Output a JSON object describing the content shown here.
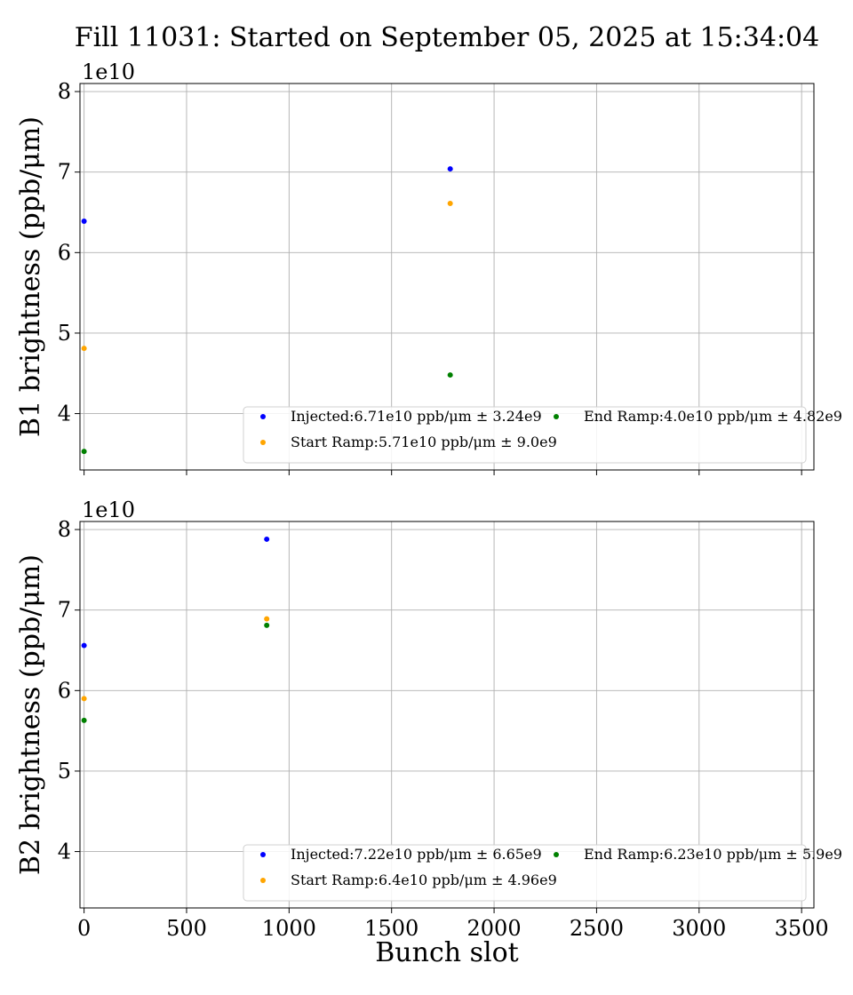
{
  "figure": {
    "title": "Fill 11031: Started on September 05, 2025 at 15:34:04",
    "xlabel": "Bunch slot"
  },
  "colors": {
    "Injected": "#0000ff",
    "Start Ramp": "#ffa500",
    "End Ramp": "#008000",
    "grid": "#b0b0b0"
  },
  "chart_data": [
    {
      "type": "scatter",
      "title": "",
      "xlabel": "",
      "ylabel": "B1 brightness (ppb/μm)",
      "y_offset_label": "1e10",
      "xlim": [
        -20,
        3560
      ],
      "ylim": [
        33000000000.0,
        81000000000.0
      ],
      "grid": true,
      "legend": "lower right",
      "xticks": [
        0,
        500,
        1000,
        1500,
        2000,
        2500,
        3000,
        3500
      ],
      "yticks": [
        40000000000.0,
        50000000000.0,
        60000000000.0,
        70000000000.0,
        80000000000.0
      ],
      "ytick_labels": [
        "4",
        "5",
        "6",
        "7",
        "8"
      ],
      "show_xtick_labels": false,
      "series": [
        {
          "name": "Injected",
          "legend": "Injected:6.71e10 ppb/μm ± 3.24e9",
          "points": [
            [
              0,
              63900000000.0
            ],
            [
              1786,
              70400000000.0
            ]
          ]
        },
        {
          "name": "Start Ramp",
          "legend": "Start Ramp:5.71e10 ppb/μm ± 9.0e9",
          "points": [
            [
              0,
              48100000000.0
            ],
            [
              1786,
              66100000000.0
            ]
          ]
        },
        {
          "name": "End Ramp",
          "legend": "End Ramp:4.0e10 ppb/μm ± 4.82e9",
          "points": [
            [
              0,
              35300000000.0
            ],
            [
              1786,
              44800000000.0
            ]
          ]
        }
      ]
    },
    {
      "type": "scatter",
      "title": "",
      "xlabel": "Bunch slot",
      "ylabel": "B2 brightness (ppb/μm)",
      "y_offset_label": "1e10",
      "xlim": [
        -20,
        3560
      ],
      "ylim": [
        33000000000.0,
        81000000000.0
      ],
      "grid": true,
      "legend": "lower right",
      "xticks": [
        0,
        500,
        1000,
        1500,
        2000,
        2500,
        3000,
        3500
      ],
      "yticks": [
        40000000000.0,
        50000000000.0,
        60000000000.0,
        70000000000.0,
        80000000000.0
      ],
      "ytick_labels": [
        "4",
        "5",
        "6",
        "7",
        "8"
      ],
      "show_xtick_labels": true,
      "series": [
        {
          "name": "Injected",
          "legend": "Injected:7.22e10 ppb/μm ± 6.65e9",
          "points": [
            [
              0,
              65600000000.0
            ],
            [
              891,
              78800000000.0
            ]
          ]
        },
        {
          "name": "Start Ramp",
          "legend": "Start Ramp:6.4e10 ppb/μm ± 4.96e9",
          "points": [
            [
              0,
              59000000000.0
            ],
            [
              891,
              68900000000.0
            ]
          ]
        },
        {
          "name": "End Ramp",
          "legend": "End Ramp:6.23e10 ppb/μm ± 5.9e9",
          "points": [
            [
              0,
              56300000000.0
            ],
            [
              891,
              68100000000.0
            ]
          ]
        }
      ]
    }
  ]
}
